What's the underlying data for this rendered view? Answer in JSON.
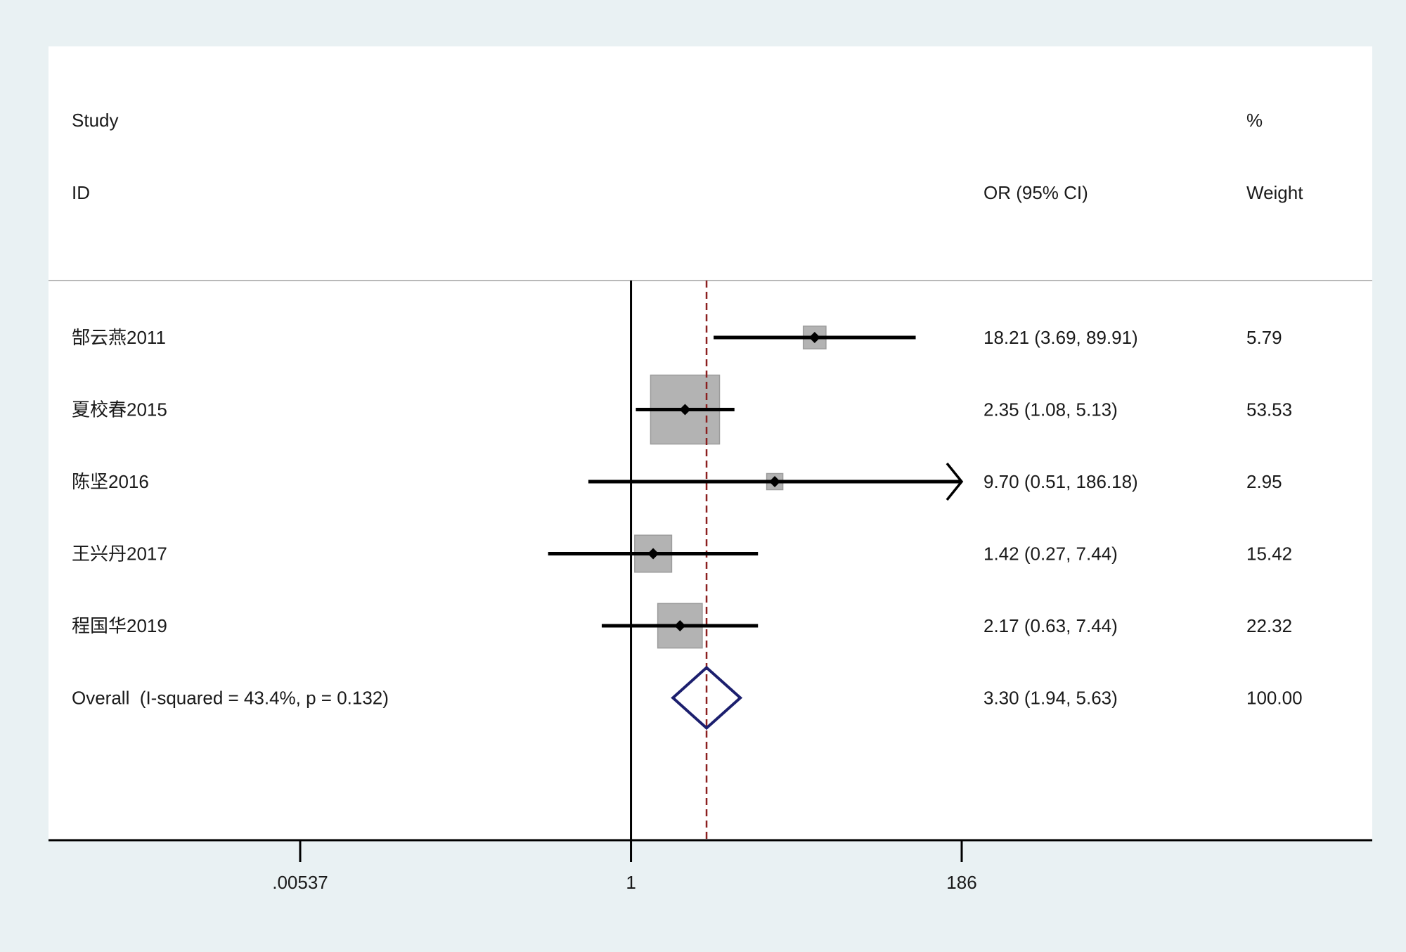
{
  "headers": {
    "study": "Study",
    "id": "ID",
    "or_ci": "OR (95% CI)",
    "percent": "%",
    "weight": "Weight"
  },
  "colors": {
    "background": "#e9f1f3",
    "panel": "#ffffff",
    "text": "#1a1a1a",
    "divider": "#b9b9b9",
    "weight_box": "#b3b3b3",
    "weight_box_border": "#9c9c9c",
    "ci_line": "#000000",
    "point_marker": "#000000",
    "null_line": "#000000",
    "reference_line": "#8b1f1f",
    "overall_diamond": "#1c1f6e",
    "axis": "#000000"
  },
  "chart_data": {
    "type": "scatter",
    "xscale": "log",
    "xlim": [
      0.00537,
      186
    ],
    "null_value": 1,
    "xticks": [
      {
        "value": 0.00537,
        "label": ".00537"
      },
      {
        "value": 1,
        "label": "1"
      },
      {
        "value": 186,
        "label": "186"
      }
    ],
    "studies": [
      {
        "id": "郜云燕2011",
        "or": 18.21,
        "ci_low": 3.69,
        "ci_high": 89.91,
        "weight": 5.79,
        "or_text": "18.21 (3.69, 89.91)",
        "weight_text": "5.79"
      },
      {
        "id": "夏校春2015",
        "or": 2.35,
        "ci_low": 1.08,
        "ci_high": 5.13,
        "weight": 53.53,
        "or_text": "2.35 (1.08, 5.13)",
        "weight_text": "53.53"
      },
      {
        "id": "陈坚2016",
        "or": 9.7,
        "ci_low": 0.51,
        "ci_high": 186.18,
        "weight": 2.95,
        "or_text": "9.70 (0.51, 186.18)",
        "weight_text": "2.95"
      },
      {
        "id": "王兴丹2017",
        "or": 1.42,
        "ci_low": 0.27,
        "ci_high": 7.44,
        "weight": 15.42,
        "or_text": "1.42 (0.27, 7.44)",
        "weight_text": "15.42"
      },
      {
        "id": "程国华2019",
        "or": 2.17,
        "ci_low": 0.63,
        "ci_high": 7.44,
        "weight": 22.32,
        "or_text": "2.17 (0.63, 7.44)",
        "weight_text": "22.32"
      }
    ],
    "overall": {
      "label": "Overall  (I-squared = 43.4%, p = 0.132)",
      "or": 3.3,
      "ci_low": 1.94,
      "ci_high": 5.63,
      "or_text": "3.30 (1.94, 5.63)",
      "weight_text": "100.00"
    }
  }
}
